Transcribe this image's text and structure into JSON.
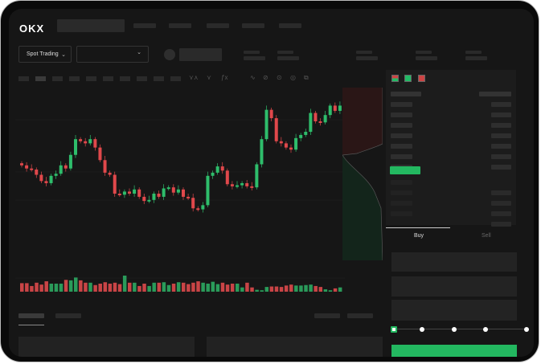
{
  "header": {
    "logo": "OKX"
  },
  "toolbar": {
    "market_select": "Spot Trading",
    "pair_select": "",
    "chevron": "chevron-down-icon"
  },
  "order_form": {
    "tabs": [
      {
        "label": "Buy",
        "active": true
      },
      {
        "label": "Sell",
        "active": false
      }
    ],
    "slider_value_percent": 0,
    "slider_steps": 5
  },
  "colors": {
    "up": "#2ebd6b",
    "down": "#e0484b",
    "accent": "#23b860",
    "background": "#161616"
  },
  "chart_data": {
    "type": "candlestick",
    "closes": [
      65,
      62,
      61,
      56,
      50,
      48,
      55,
      57,
      65,
      62,
      75,
      90,
      88,
      86,
      90,
      82,
      70,
      58,
      56,
      38,
      37,
      40,
      38,
      42,
      35,
      31,
      32,
      38,
      35,
      43,
      44,
      39,
      42,
      35,
      34,
      24,
      23,
      27,
      55,
      58,
      64,
      60,
      47,
      45,
      46,
      48,
      45,
      44,
      66,
      90,
      118,
      110,
      88,
      86,
      82,
      80,
      91,
      94,
      97,
      115,
      107,
      106,
      113,
      122,
      117,
      122
    ],
    "first_open": 67,
    "volumes": [
      18,
      18,
      12,
      19,
      15,
      22,
      17,
      17,
      17,
      25,
      24,
      30,
      24,
      19,
      19,
      14,
      17,
      20,
      17,
      19,
      16,
      34,
      19,
      19,
      12,
      17,
      12,
      19,
      19,
      20,
      14,
      17,
      20,
      19,
      16,
      19,
      22,
      19,
      17,
      21,
      16,
      19,
      15,
      17,
      17,
      9,
      19,
      9,
      4,
      3,
      10,
      11,
      11,
      10,
      13,
      15,
      13,
      13,
      14,
      15,
      12,
      10,
      5,
      3,
      7,
      9
    ],
    "grid": true,
    "legend": "none"
  }
}
